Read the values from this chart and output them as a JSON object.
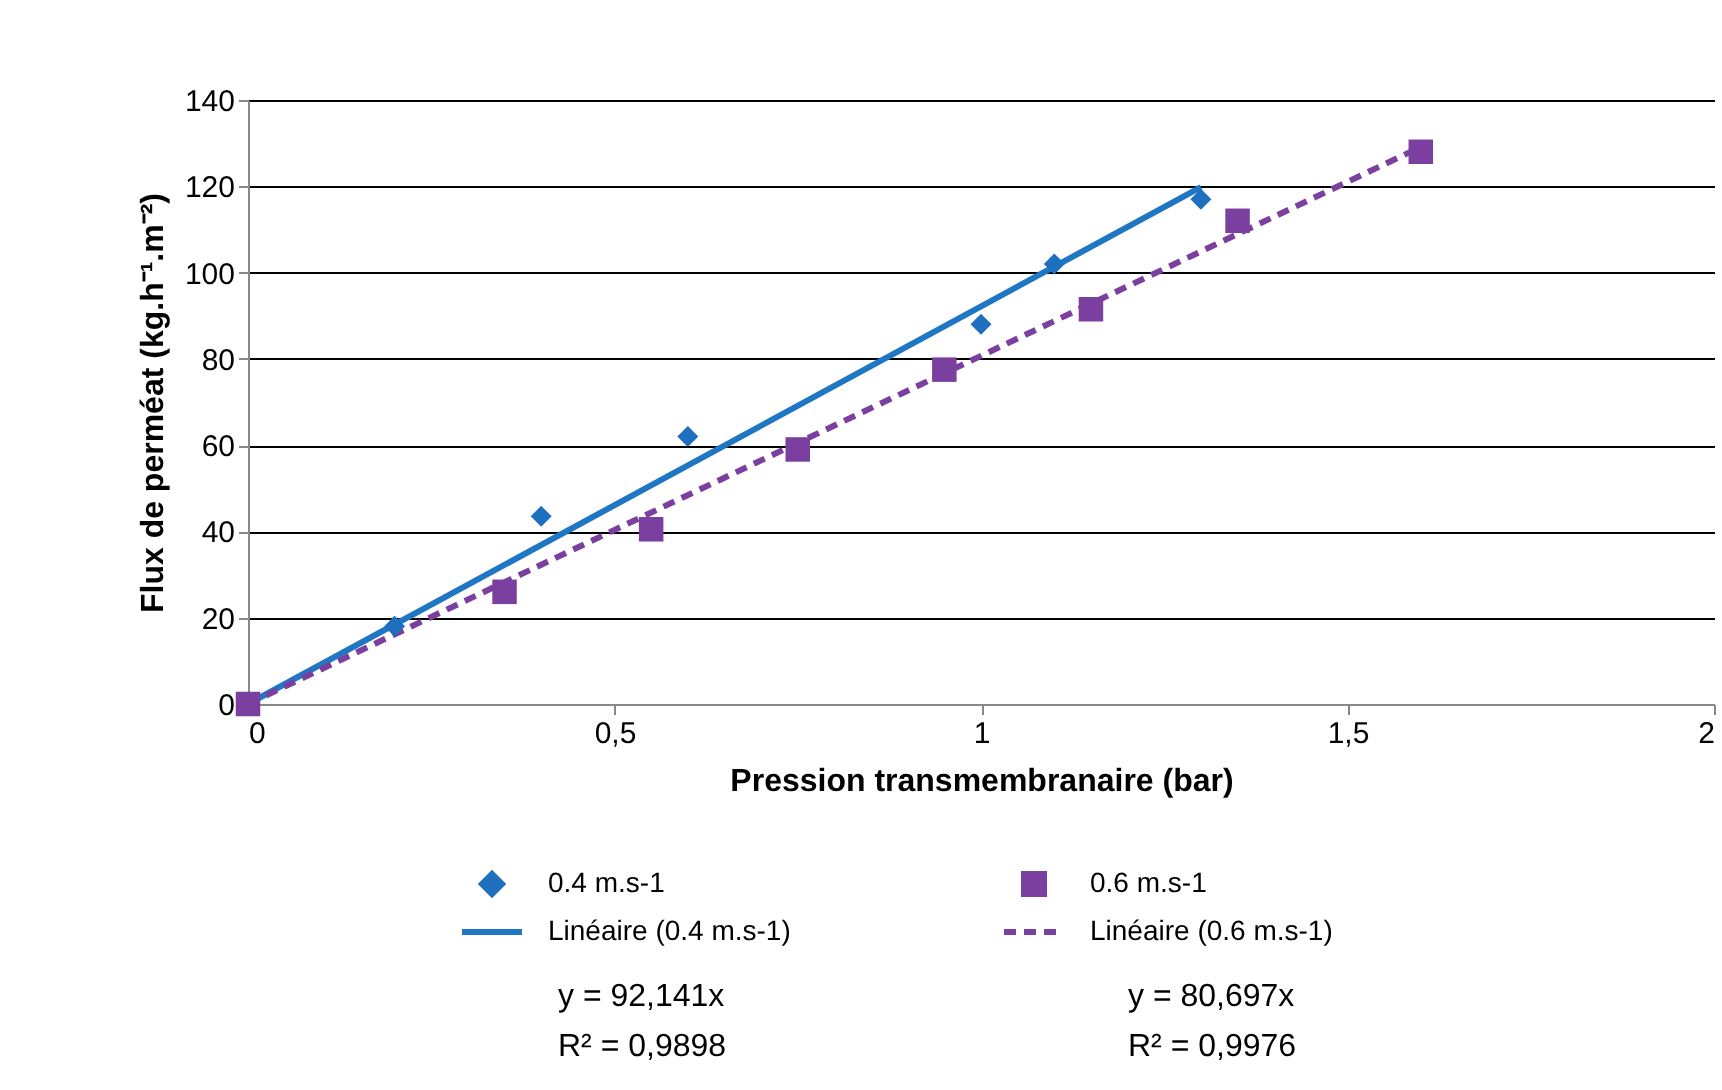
{
  "chart_data": {
    "type": "scatter",
    "xlabel": "Pression transmembranaire (bar)",
    "ylabel": "Flux de perméat (kg.h⁻¹.m⁻²)",
    "xlim": [
      0,
      2
    ],
    "xticks": [
      0,
      {
        "value": 0.5,
        "label": "0,5"
      },
      1,
      {
        "value": 1.5,
        "label": "1,5"
      },
      2
    ],
    "ylim": [
      0,
      140
    ],
    "yticks": [
      0,
      20,
      40,
      60,
      80,
      100,
      120,
      140
    ],
    "grid": "y",
    "legend": "bottom",
    "series": [
      {
        "name": "0.4 m.s-1",
        "marker": "diamond",
        "color": "#1f6fbf",
        "x": [
          0.2,
          0.4,
          0.6,
          1.0,
          1.1,
          1.3
        ],
        "values": [
          18,
          43.5,
          62,
          88,
          102,
          117
        ]
      },
      {
        "name": "0.6 m.s-1",
        "marker": "square",
        "color": "#7b3fa0",
        "x": [
          0,
          0.35,
          0.55,
          0.75,
          0.95,
          1.15,
          1.35,
          1.6
        ],
        "values": [
          0,
          26,
          40.5,
          59,
          77.5,
          91.5,
          112,
          128
        ]
      },
      {
        "name": "Linéaire (0.4 m.s-1)",
        "type": "line",
        "line_style": "solid",
        "color": "#1f77c4",
        "x": [
          0,
          1.3
        ],
        "values": [
          0,
          119.8
        ]
      },
      {
        "name": "Linéaire (0.6 m.s-1)",
        "type": "line",
        "line_style": "dashed",
        "color": "#7b3fa0",
        "x": [
          0,
          1.6
        ],
        "values": [
          0,
          129.1
        ]
      }
    ],
    "annotations": [
      "y = 92,141x",
      "R² = 0,9898",
      "y = 80,697x",
      "R² = 0,9976"
    ]
  }
}
